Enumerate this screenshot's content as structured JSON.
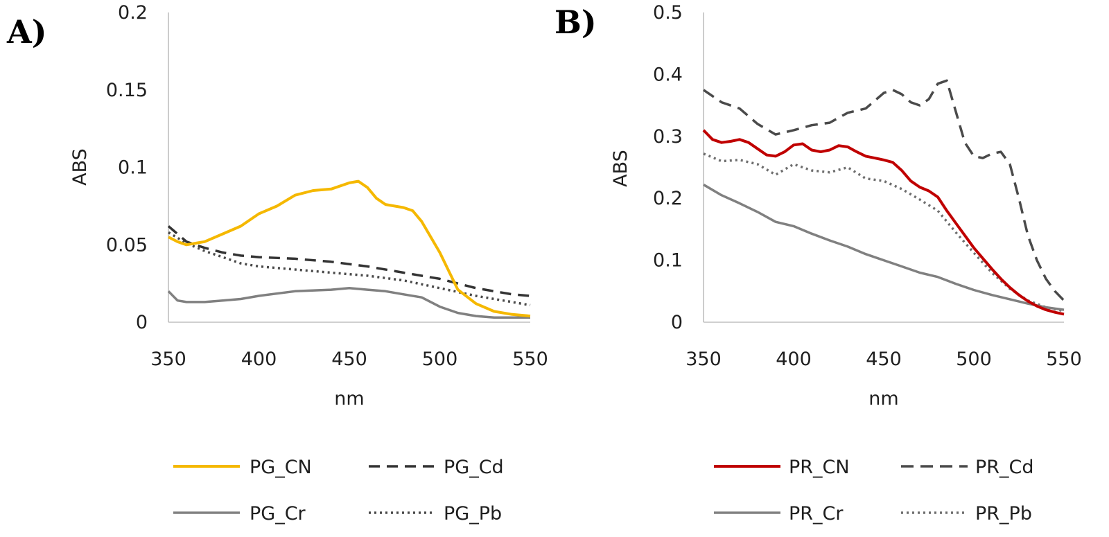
{
  "chart_data": [
    {
      "panel": "A)",
      "type": "line",
      "xlabel": "nm",
      "ylabel": "ABS",
      "xlim": [
        350,
        550
      ],
      "ylim": [
        0,
        0.2
      ],
      "xticks": [
        "350",
        "400",
        "450",
        "500",
        "550"
      ],
      "yticks": [
        "0",
        "0.05",
        "0.1",
        "0.15",
        "0.2"
      ],
      "grid": false,
      "legend_position": "bottom",
      "series": [
        {
          "name": "PG_CN",
          "color": "#f5b800",
          "dash": "solid",
          "width": 4,
          "x": [
            350,
            355,
            360,
            365,
            370,
            380,
            390,
            400,
            410,
            420,
            430,
            440,
            450,
            455,
            460,
            465,
            470,
            480,
            485,
            490,
            495,
            500,
            505,
            510,
            520,
            530,
            540,
            550
          ],
          "y": [
            0.055,
            0.052,
            0.05,
            0.051,
            0.052,
            0.057,
            0.062,
            0.07,
            0.075,
            0.082,
            0.085,
            0.086,
            0.09,
            0.091,
            0.087,
            0.08,
            0.076,
            0.074,
            0.072,
            0.065,
            0.055,
            0.045,
            0.033,
            0.021,
            0.012,
            0.007,
            0.005,
            0.004
          ]
        },
        {
          "name": "PG_Cd",
          "color": "#333333",
          "dash": "16,10",
          "width": 3.5,
          "x": [
            350,
            360,
            370,
            380,
            390,
            400,
            420,
            440,
            460,
            480,
            500,
            520,
            540,
            550
          ],
          "y": [
            0.062,
            0.052,
            0.048,
            0.045,
            0.043,
            0.042,
            0.041,
            0.039,
            0.036,
            0.032,
            0.028,
            0.022,
            0.018,
            0.017
          ]
        },
        {
          "name": "PG_Cr",
          "color": "#808080",
          "dash": "solid",
          "width": 3.5,
          "x": [
            350,
            355,
            360,
            370,
            380,
            390,
            400,
            420,
            440,
            450,
            460,
            470,
            480,
            490,
            500,
            510,
            520,
            530,
            540,
            550
          ],
          "y": [
            0.02,
            0.014,
            0.013,
            0.013,
            0.014,
            0.015,
            0.017,
            0.02,
            0.021,
            0.022,
            0.021,
            0.02,
            0.018,
            0.016,
            0.01,
            0.006,
            0.004,
            0.003,
            0.003,
            0.003
          ]
        },
        {
          "name": "PG_Pb",
          "color": "#4a4a4a",
          "dash": "3,5",
          "width": 3.5,
          "x": [
            350,
            360,
            370,
            380,
            390,
            400,
            420,
            440,
            460,
            480,
            500,
            520,
            540,
            550
          ],
          "y": [
            0.058,
            0.051,
            0.046,
            0.042,
            0.038,
            0.036,
            0.034,
            0.032,
            0.03,
            0.027,
            0.022,
            0.017,
            0.013,
            0.011
          ]
        }
      ]
    },
    {
      "panel": "B)",
      "type": "line",
      "xlabel": "nm",
      "ylabel": "ABS",
      "xlim": [
        350,
        550
      ],
      "ylim": [
        0,
        0.5
      ],
      "xticks": [
        "350",
        "400",
        "450",
        "500",
        "550"
      ],
      "yticks": [
        "0",
        "0.1",
        "0.2",
        "0.3",
        "0.4",
        "0.5"
      ],
      "grid": false,
      "legend_position": "bottom",
      "series": [
        {
          "name": "PR_CN",
          "color": "#c00000",
          "dash": "solid",
          "width": 4,
          "x": [
            350,
            355,
            360,
            365,
            370,
            375,
            380,
            385,
            390,
            395,
            400,
            405,
            410,
            415,
            420,
            425,
            430,
            435,
            440,
            445,
            450,
            455,
            460,
            465,
            470,
            475,
            480,
            485,
            490,
            495,
            500,
            505,
            510,
            515,
            520,
            525,
            530,
            535,
            540,
            545,
            550
          ],
          "y": [
            0.31,
            0.295,
            0.29,
            0.292,
            0.295,
            0.29,
            0.28,
            0.27,
            0.268,
            0.275,
            0.286,
            0.288,
            0.278,
            0.275,
            0.278,
            0.285,
            0.283,
            0.275,
            0.268,
            0.265,
            0.262,
            0.258,
            0.245,
            0.228,
            0.218,
            0.212,
            0.202,
            0.18,
            0.16,
            0.14,
            0.12,
            0.103,
            0.086,
            0.07,
            0.056,
            0.044,
            0.034,
            0.026,
            0.02,
            0.016,
            0.013
          ]
        },
        {
          "name": "PR_Cd",
          "color": "#4a4a4a",
          "dash": "18,10",
          "width": 3.5,
          "x": [
            350,
            360,
            370,
            380,
            390,
            400,
            410,
            420,
            430,
            440,
            450,
            455,
            460,
            465,
            470,
            475,
            480,
            485,
            490,
            495,
            500,
            505,
            510,
            515,
            520,
            525,
            530,
            535,
            540,
            545,
            550
          ],
          "y": [
            0.375,
            0.355,
            0.345,
            0.32,
            0.303,
            0.31,
            0.318,
            0.322,
            0.338,
            0.345,
            0.37,
            0.375,
            0.368,
            0.355,
            0.35,
            0.36,
            0.385,
            0.39,
            0.34,
            0.29,
            0.268,
            0.265,
            0.272,
            0.275,
            0.255,
            0.2,
            0.14,
            0.1,
            0.07,
            0.05,
            0.035
          ]
        },
        {
          "name": "PR_Cr",
          "color": "#808080",
          "dash": "solid",
          "width": 3.5,
          "x": [
            350,
            360,
            370,
            380,
            390,
            400,
            410,
            420,
            430,
            440,
            450,
            460,
            470,
            480,
            490,
            500,
            510,
            520,
            530,
            540,
            550
          ],
          "y": [
            0.222,
            0.205,
            0.192,
            0.178,
            0.162,
            0.155,
            0.143,
            0.132,
            0.122,
            0.11,
            0.1,
            0.09,
            0.08,
            0.073,
            0.062,
            0.052,
            0.044,
            0.037,
            0.03,
            0.024,
            0.02
          ]
        },
        {
          "name": "PR_Pb",
          "color": "#6e6e6e",
          "dash": "3,5",
          "width": 3.5,
          "x": [
            350,
            360,
            370,
            380,
            390,
            400,
            410,
            420,
            430,
            440,
            450,
            460,
            470,
            480,
            490,
            500,
            510,
            520,
            530,
            540,
            550
          ],
          "y": [
            0.272,
            0.26,
            0.262,
            0.255,
            0.238,
            0.255,
            0.245,
            0.242,
            0.25,
            0.232,
            0.228,
            0.215,
            0.198,
            0.18,
            0.145,
            0.112,
            0.08,
            0.054,
            0.035,
            0.024,
            0.018
          ]
        }
      ]
    }
  ]
}
